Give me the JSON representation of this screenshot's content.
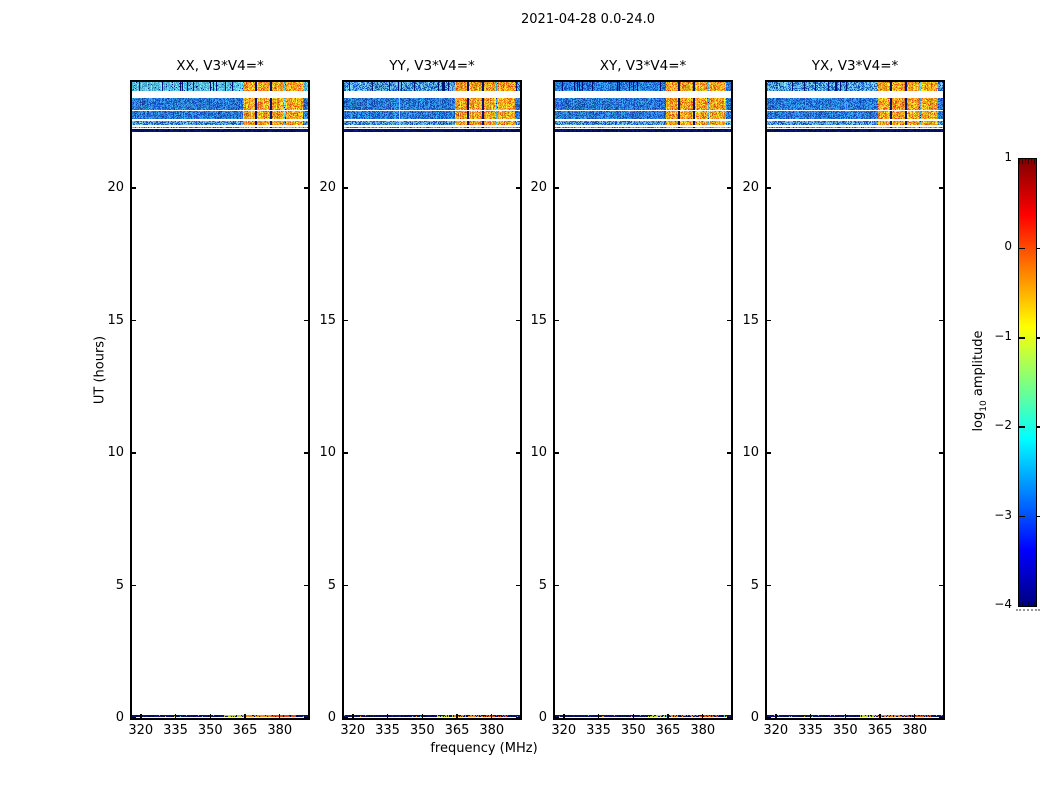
{
  "title": "2021-04-28 0.0-24.0",
  "axes": {
    "xlabel": "frequency (MHz)",
    "ylabel": "UT (hours)",
    "x_tick_labels": [
      "320",
      "335",
      "350",
      "365",
      "380"
    ],
    "x_tick_values": [
      320,
      335,
      350,
      365,
      380
    ],
    "x_range_mhz": [
      316.2,
      392.2
    ],
    "y_tick_labels": [
      "0",
      "5",
      "10",
      "15",
      "20"
    ],
    "y_tick_values": [
      0,
      5,
      10,
      15,
      20
    ],
    "y_range_hours": [
      0,
      24
    ]
  },
  "panels": [
    {
      "title": "XX, V3*V4=*",
      "tint": "cyan",
      "seed": 101,
      "bottom_sparse": 0.12
    },
    {
      "title": "YY, V3*V4=*",
      "tint": "mix",
      "seed": 202,
      "bottom_sparse": 0.5,
      "line_mhz": 340.2
    },
    {
      "title": "XY, V3*V4=*",
      "tint": "blue",
      "seed": 303,
      "bottom_sparse": 0.45
    },
    {
      "title": "YX, V3*V4=*",
      "tint": "mix",
      "seed": 404,
      "bottom_sparse": 0.3
    }
  ],
  "colorbar": {
    "label_pre": "log",
    "label_sub": "10",
    "label_post": " amplitude",
    "tick_labels": [
      "1",
      "0",
      "−1",
      "−2",
      "−3",
      "−4"
    ],
    "tick_values": [
      1,
      0,
      -1,
      -2,
      -3,
      -4
    ],
    "range": [
      -4,
      1
    ],
    "colormap": "jet"
  },
  "chart_data": {
    "type": "heatmap",
    "title": "2021-04-28 0.0-24.0",
    "xlabel": "frequency (MHz)",
    "ylabel": "UT (hours)",
    "colorbar_label": "log10 amplitude",
    "colorbar_range": [
      -4,
      1
    ],
    "colormap": "jet",
    "panel_titles": [
      "XX, V3*V4=*",
      "YY, V3*V4=*",
      "XY, V3*V4=*",
      "YX, V3*V4=*"
    ],
    "x_range_mhz": [
      316.2,
      392.2
    ],
    "y_range_hours": [
      0,
      24
    ],
    "bands": [
      {
        "t": [
          23.67,
          24.0
        ],
        "kind": "A",
        "amp_log10": -2.3
      },
      {
        "t": [
          22.95,
          23.38
        ],
        "kind": "B",
        "amp_log10": -2.8
      },
      {
        "t": [
          22.62,
          22.9
        ],
        "kind": "B",
        "amp_log10": -2.8
      },
      {
        "t": [
          22.37,
          22.54
        ],
        "kind": "D",
        "amp_log10": -2.6
      },
      {
        "t": [
          22.25,
          22.32
        ],
        "kind": "E",
        "amp_log10": -2.5
      },
      {
        "t": [
          22.12,
          22.24
        ],
        "kind": "N",
        "amp_log10": -3.9
      },
      {
        "t": [
          0.02,
          0.12
        ],
        "kind": "bottom",
        "amp_log10": -3.5
      }
    ],
    "rfi_zone_mhz": [
      364.0,
      390.0
    ],
    "rfi_zone_amp_log10": -0.5,
    "rfi_dark_lines_mhz": [
      369.8,
      376.2
    ],
    "rfi_cyan_line_mhz": 382.4,
    "bottom_segments": [
      {
        "mhz": [
          355.8,
          363.8
        ],
        "color": [
          188,
          210,
          46
        ]
      },
      {
        "mhz": [
          363.8,
          376.2
        ],
        "color": [
          240,
          138,
          30
        ]
      },
      {
        "mhz": [
          376.2,
          387.0
        ],
        "color": [
          226,
          74,
          20
        ]
      }
    ],
    "description": "Four dynamic-spectrum panels (XX, YY, XY, YX) of log10 amplitude vs frequency (316-392 MHz) and UT (0-24 h). Data present only near 22.1-24.0 UT (blue/cyan speckle with strong orange/yellow RFI between ~364-390 MHz, dark navy row near 22.2 UT) and a thin mixed stripe near 0.05 UT."
  }
}
